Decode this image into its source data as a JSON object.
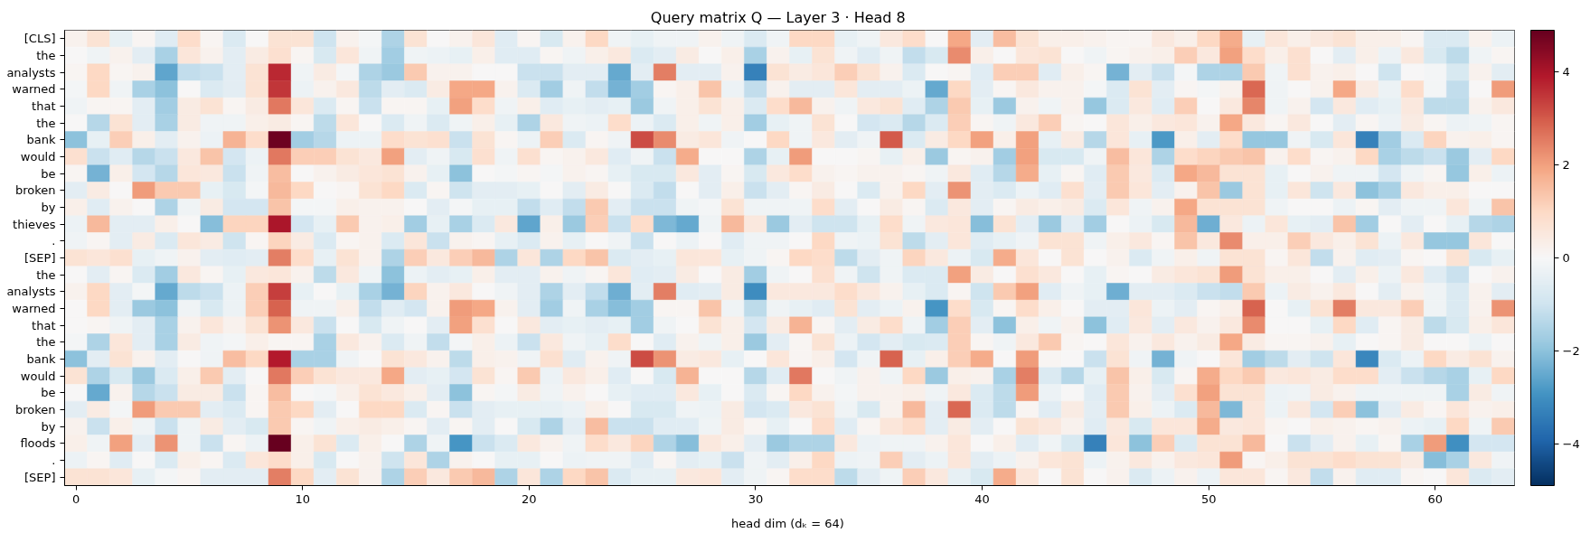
{
  "chart_data": {
    "type": "heatmap",
    "title": "Query matrix  Q   —   Layer 3 · Head 8",
    "xlabel": "head dim  (dₖ = 64)",
    "categories": [
      "0",
      null,
      null,
      null,
      null,
      null,
      null,
      null,
      null,
      null,
      "10",
      null,
      null,
      null,
      null,
      null,
      null,
      null,
      null,
      null,
      "20",
      null,
      null,
      null,
      null,
      null,
      null,
      null,
      null,
      null,
      "30",
      null,
      null,
      null,
      null,
      null,
      null,
      null,
      null,
      null,
      "40",
      null,
      null,
      null,
      null,
      null,
      null,
      null,
      null,
      null,
      "50",
      null,
      null,
      null,
      null,
      null,
      null,
      null,
      null,
      null,
      "60",
      null,
      null,
      null
    ],
    "y_categories": [
      "[CLS]",
      "the",
      "analysts",
      "warned",
      "that",
      "the",
      "bank",
      "would",
      "be",
      "broken",
      "by",
      "thieves",
      ".",
      "[SEP]",
      "the",
      "analysts",
      "warned",
      "that",
      "the",
      "bank",
      "would",
      "be",
      "broken",
      "by",
      "floods",
      ".",
      "[SEP]"
    ],
    "cells": [
      [
        0.2,
        0.7,
        -0.4,
        0.1,
        -0.6,
        0.9,
        0.1,
        -0.7,
        0,
        0.7,
        0.7,
        -1.0,
        0.2,
        -0.1,
        -1.5,
        0.7,
        0,
        0.2,
        0.6,
        -0.6,
        0.1,
        -0.8,
        0.2,
        1.0,
        -0.2,
        -0.4,
        -0.2,
        -0.2,
        0.2,
        -0.2,
        -0.7,
        -0.2,
        1.0,
        1.0,
        -0.4,
        -0.2,
        0.5,
        0.9,
        0,
        1.9,
        -0.5,
        1.5,
        0.7,
        0.3,
        0.3,
        0.2,
        0.1,
        0.1,
        0.5,
        0.3,
        1.0,
        1.8,
        -0.4,
        0.6,
        0.3,
        0.5,
        0.7,
        0.3,
        0.3,
        0.1,
        -0.7,
        -0.7,
        0.2,
        -0.3
      ],
      [
        0,
        -0.2,
        0.2,
        -0.5,
        -1.6,
        0.6,
        0.2,
        -0.5,
        0.4,
        0.8,
        0.1,
        -0.8,
        0.6,
        -0.2,
        -1.7,
        -0.2,
        -0.3,
        -0.4,
        0.3,
        -0.6,
        -0.6,
        0.1,
        -0.2,
        0.3,
        0.5,
        -0.7,
        -0.5,
        0.4,
        0,
        0.3,
        -1.6,
        0.2,
        -0.4,
        0.7,
        -0.2,
        -0.6,
        -0.2,
        -1.2,
        -0.8,
        2.3,
        0.3,
        0,
        0.6,
        0.7,
        0,
        -0.2,
        0.1,
        0.2,
        0.3,
        1.2,
        0.5,
        2.0,
        0.9,
        0.3,
        0.8,
        0,
        -0.5,
        0.3,
        -0.3,
        0.5,
        -0.8,
        -1.3,
        -0.2,
        0.1
      ],
      [
        0.1,
        1.0,
        0.1,
        0.2,
        -2.6,
        -1.2,
        -1.1,
        -0.5,
        0.7,
        3.7,
        -0.2,
        0.4,
        -0.1,
        -1.5,
        -1.8,
        1.3,
        0.2,
        0.2,
        0,
        0,
        -1.1,
        -1.1,
        -0.5,
        -0.5,
        -2.5,
        -0.5,
        2.5,
        -0.5,
        -0.5,
        0.2,
        -3.3,
        0.7,
        0.4,
        0.6,
        1.2,
        0.7,
        0.2,
        -0.7,
        0,
        0.1,
        -0.6,
        1.2,
        1.2,
        -0.6,
        0.3,
        0.1,
        -2.3,
        -0.5,
        -1.1,
        -0.1,
        -1.5,
        -1.5,
        1.3,
        -0.2,
        0.8,
        0.2,
        0.3,
        0,
        -1.0,
        0,
        -0.1,
        -0.8,
        0.2,
        -0.5
      ],
      [
        -0.1,
        1.0,
        -0.2,
        -1.6,
        -2.0,
        0,
        -0.7,
        -0.5,
        0.7,
        3.5,
        -0.3,
        0.2,
        0.5,
        -1.3,
        -0.5,
        -0.7,
        0.4,
        1.9,
        1.9,
        0.2,
        -0.7,
        -1.7,
        -0.2,
        -1.2,
        -2.3,
        -1.7,
        0.1,
        0.3,
        1.4,
        -0.3,
        -1.2,
        0.2,
        -0.5,
        -0.5,
        0.6,
        -0.5,
        -0.5,
        -0.3,
        -2.5,
        1.0,
        -0.5,
        0.1,
        0.5,
        0.2,
        0.2,
        -0.1,
        -0.7,
        0.7,
        -0.5,
        0.1,
        -0.1,
        0.2,
        2.8,
        -0.2,
        0,
        0.2,
        1.9,
        0.4,
        -0.3,
        0.9,
        -0.1,
        -1.2,
        0,
        2.1
      ],
      [
        -0.2,
        0.1,
        0.1,
        -0.5,
        -1.7,
        0.4,
        0.7,
        0.1,
        0.4,
        2.6,
        0.6,
        -0.7,
        0.1,
        -1.1,
        0.1,
        0.1,
        -0.4,
        2.0,
        0.9,
        -0.2,
        0.3,
        -0.6,
        -0.4,
        -0.5,
        -0.4,
        -1.8,
        -0.2,
        0.3,
        0.7,
        0.3,
        -0.7,
        0.9,
        1.6,
        0.2,
        -0.2,
        0.5,
        0.7,
        -0.6,
        -1.5,
        1.3,
        -0.4,
        -1.8,
        0.2,
        -0.2,
        0.2,
        -1.9,
        -0.7,
        0.5,
        -0.6,
        1.2,
        0,
        0.5,
        2.4,
        -0.2,
        0.2,
        -0.9,
        0.5,
        -0.6,
        -0.4,
        0.5,
        -1.3,
        -1.3,
        0.2,
        0.5
      ],
      [
        0,
        -1.4,
        0.7,
        -0.5,
        -1.6,
        0.4,
        -0.2,
        -0.2,
        0.3,
        0.4,
        0.1,
        -1.3,
        0.6,
        0,
        -0.7,
        -0.2,
        -0.7,
        -0.2,
        0.3,
        -0.4,
        -1.5,
        0.5,
        -0.2,
        -0.3,
        0.9,
        -0.3,
        -0.7,
        0.3,
        -0.2,
        0.3,
        -1.7,
        -0.4,
        -0.2,
        0.7,
        0,
        -0.9,
        -0.7,
        -1.4,
        -0.7,
        1.2,
        0.1,
        -0.2,
        0.5,
        1.2,
        0.1,
        0,
        0.6,
        0.3,
        0.5,
        0.6,
        0.2,
        1.9,
        0.5,
        0.1,
        0.5,
        0,
        -0.5,
        0.1,
        -0.3,
        0.4,
        0.1,
        -0.3,
        -0.2,
        0.1
      ],
      [
        -2.0,
        -0.4,
        1.2,
        0.3,
        -0.5,
        0.2,
        -0.3,
        1.7,
        0.9,
        4.8,
        -1.7,
        -1.4,
        -0.3,
        -0.3,
        0.9,
        0.7,
        0.8,
        -1.1,
        0.7,
        0.1,
        -0.3,
        1.2,
        -0.7,
        0.1,
        -0.2,
        3.2,
        2.3,
        0.4,
        0.6,
        -0.2,
        0,
        1.0,
        -0.2,
        0.5,
        -0.5,
        -0.2,
        3.0,
        -0.7,
        0.4,
        1.0,
        2.0,
        0.3,
        2.0,
        -0.4,
        0.4,
        -1.4,
        0.6,
        -0.4,
        -2.8,
        0.3,
        -0.5,
        0.9,
        -1.9,
        -1.9,
        -0.2,
        -0.8,
        0.6,
        -3.3,
        -1.7,
        -0.7,
        1.1,
        0.2,
        0.3,
        0.1
      ],
      [
        0.8,
        -1.1,
        -0.6,
        -1.4,
        -1.1,
        0.5,
        1.4,
        -0.9,
        -0.3,
        2.6,
        1.2,
        1.2,
        0.7,
        0.5,
        2.0,
        -0.5,
        -0.2,
        -0.8,
        0.8,
        -0.2,
        0.8,
        0.1,
        0.2,
        0.5,
        -0.6,
        -0.2,
        -1.1,
        1.8,
        0,
        0,
        -1.5,
        -0.4,
        2.1,
        0,
        0,
        0.1,
        -0.4,
        0.3,
        -1.8,
        0.1,
        0.2,
        -1.7,
        2.0,
        -0.8,
        -0.8,
        -0.2,
        1.5,
        0.6,
        -1.5,
        0.9,
        1.1,
        1.3,
        1.4,
        0.2,
        0.9,
        0.1,
        0.2,
        1.0,
        -1.6,
        -1.3,
        -1.1,
        -1.8,
        -0.5,
        1.0
      ],
      [
        0.1,
        -2.3,
        0.3,
        -0.9,
        -1.4,
        0.6,
        0.5,
        -1.1,
        -0.2,
        1.5,
        0,
        0.2,
        0.4,
        0.6,
        0.7,
        0.2,
        -0.4,
        -2.0,
        0,
        -0.1,
        0.1,
        -0.1,
        0.2,
        0.1,
        -0.4,
        -0.8,
        -0.8,
        0.5,
        -0.5,
        0.1,
        -0.8,
        0.5,
        0.9,
        0.2,
        0.1,
        0.2,
        0.2,
        0.1,
        -0.2,
        0.5,
        -0.6,
        -1.4,
        1.8,
        -0.4,
        0.1,
        -0.6,
        1.3,
        0.5,
        -0.7,
        1.9,
        1.6,
        0.7,
        0.7,
        -0.4,
        0,
        0.2,
        -0.2,
        -0.2,
        -0.9,
        -0.2,
        0.1,
        -1.9,
        0.3,
        -0.3
      ],
      [
        -0.5,
        0.4,
        0,
        2.1,
        1.3,
        1.3,
        -0.4,
        -0.8,
        -0.1,
        1.6,
        1.0,
        0,
        0.1,
        0.7,
        1.0,
        -0.7,
        0.1,
        -1.0,
        -0.5,
        -0.5,
        -0.4,
        0,
        -0.5,
        0.4,
        0,
        -0.7,
        -1.2,
        0,
        -0.5,
        0.3,
        -1.1,
        -0.5,
        0.1,
        0.4,
        0,
        -0.7,
        0.2,
        1.0,
        -0.5,
        2.2,
        -0.5,
        -0.7,
        -0.3,
        -0.6,
        0.8,
        -0.5,
        1.3,
        0.6,
        -0.5,
        0.2,
        1.4,
        -1.8,
        0.7,
        -0.4,
        0.6,
        -1.0,
        0.5,
        -2.0,
        -1.6,
        0.5,
        0.3,
        0.3,
        0,
        0
      ],
      [
        0.3,
        -0.6,
        0.2,
        0,
        -1.5,
        -0.2,
        0.4,
        -0.9,
        -0.9,
        1.4,
        -0.1,
        -0.1,
        0.3,
        0.2,
        0.2,
        0,
        -0.5,
        -0.1,
        -0.4,
        -0.4,
        -1.2,
        -0.6,
        -1.2,
        1.3,
        -0.5,
        -1.1,
        -1.1,
        -0.2,
        -0.1,
        0.7,
        -0.2,
        -0.2,
        -0.2,
        0.9,
        -0.5,
        0,
        0.4,
        0.1,
        -0.7,
        0.5,
        -0.5,
        0.1,
        0.4,
        0.3,
        0.4,
        -0.7,
        0.6,
        -0.2,
        0.2,
        1.9,
        0.7,
        0.7,
        0.7,
        -0.2,
        0,
        0,
        -0.3,
        0.1,
        -0.5,
        -0.2,
        -0.2,
        0.6,
        -0.2,
        1.4
      ],
      [
        -0.3,
        1.6,
        -0.5,
        -0.5,
        0.3,
        0,
        -2.1,
        1.1,
        1.1,
        4.0,
        -0.9,
        -0.4,
        1.3,
        0.2,
        0.3,
        -1.7,
        -0.4,
        -1.6,
        -0.7,
        0.5,
        -2.6,
        0.3,
        -1.8,
        1.2,
        -1.1,
        0.9,
        -2.2,
        -2.5,
        -0.2,
        1.6,
        0.5,
        -1.8,
        -0.5,
        -1.0,
        -1.0,
        -0.4,
        0.9,
        -0.2,
        0.5,
        0.6,
        -2.1,
        0.7,
        -0.5,
        -1.8,
        -0.5,
        -1.7,
        0,
        -0.3,
        -0.8,
        1.6,
        -2.4,
        0.5,
        -0.3,
        0.6,
        -0.4,
        -0.5,
        1.4,
        -1.7,
        0,
        -0.5,
        0,
        -0.4,
        -1.4,
        -1.5
      ],
      [
        -0.2,
        0.1,
        -0.5,
        0.4,
        -0.7,
        0.6,
        0.4,
        -1.0,
        0.1,
        1.1,
        0.4,
        -0.7,
        0.1,
        0.2,
        -0.7,
        0.6,
        -1.1,
        0.2,
        0.1,
        -0.4,
        -0.7,
        0.2,
        -0.4,
        0,
        -0.2,
        -1.1,
        0,
        -0.3,
        0,
        -0.6,
        -0.2,
        -0.2,
        0,
        1.0,
        -0.2,
        -0.3,
        0.7,
        -1.3,
        -0.5,
        0.6,
        -0.6,
        -0.4,
        -0.2,
        0.7,
        0.7,
        -0.2,
        0.3,
        0.5,
        0.1,
        1.4,
        0.5,
        2.3,
        0.3,
        0.3,
        1.2,
        0.5,
        0.3,
        0.7,
        -0.3,
        0.5,
        -1.9,
        -1.9,
        0.6,
        0
      ],
      [
        0.7,
        0.6,
        0.8,
        -0.4,
        -0.2,
        0.2,
        -0.5,
        -0.6,
        -0.5,
        2.5,
        0.9,
        -0.4,
        0.7,
        0.2,
        -1.5,
        1.2,
        0.5,
        1.2,
        1.6,
        -1.5,
        0.6,
        -1.5,
        1.0,
        1.4,
        -0.7,
        -0.5,
        -0.4,
        0.6,
        0.6,
        -0.4,
        -0.2,
        0.1,
        1.0,
        0.9,
        -1.3,
        -0.5,
        -0.2,
        1.1,
        0.5,
        -0.3,
        -0.8,
        1.8,
        0.6,
        0,
        0.7,
        0,
        0.2,
        -0.7,
        -0.2,
        0.3,
        -0.2,
        0.7,
        0.7,
        0.1,
        0.6,
        -1.2,
        0.2,
        -0.6,
        -0.5,
        0.1,
        0,
        0.7,
        -0.8,
        -0.4
      ],
      [
        0,
        -0.5,
        0.1,
        -0.7,
        -1.7,
        0.5,
        0.1,
        -0.4,
        0.5,
        0.6,
        0.2,
        -1.3,
        0.5,
        -0.2,
        -2.0,
        -0.3,
        -0.5,
        -0.4,
        0.3,
        -0.5,
        -0.5,
        0.2,
        -0.2,
        0.1,
        0.6,
        -0.6,
        -0.5,
        0.4,
        0,
        0.4,
        -1.7,
        -0.2,
        0,
        0.8,
        -0.2,
        -1.0,
        -0.2,
        -0.7,
        -0.7,
        2.0,
        0.4,
        0,
        0.8,
        0.5,
        0,
        -0.4,
        0.1,
        0,
        0.4,
        0.6,
        0.7,
        2.1,
        0.7,
        0.3,
        0.3,
        0,
        -0.5,
        0.3,
        -0.3,
        0.5,
        -0.6,
        -1.1,
        0,
        0.2
      ],
      [
        0.2,
        1.0,
        -0.5,
        -0.1,
        -2.5,
        -1.3,
        -1.1,
        -0.3,
        1.2,
        3.4,
        -0.4,
        0,
        -0.4,
        -1.6,
        -2.3,
        1.1,
        0.2,
        0.5,
        0,
        -0.2,
        -0.5,
        -1.5,
        -0.5,
        -1.2,
        -2.4,
        -0.5,
        2.5,
        -0.6,
        -0.5,
        0.4,
        -3.1,
        0.5,
        0.5,
        0.5,
        0.9,
        0.5,
        0.2,
        -0.4,
        -0.7,
        0.1,
        -1.0,
        1.3,
        2.0,
        -0.6,
        -0.2,
        -0.4,
        -2.4,
        -0.5,
        -0.5,
        -0.7,
        -1.1,
        -1.2,
        1.3,
        -0.3,
        0.4,
        0.2,
        0.5,
        0,
        -0.5,
        0.2,
        -0.2,
        -0.7,
        0.2,
        -0.5
      ],
      [
        0,
        1.0,
        -0.5,
        -1.8,
        -2.0,
        -0.2,
        -0.8,
        -0.3,
        1.2,
        2.9,
        -0.2,
        -0.2,
        0.3,
        -1.2,
        -0.6,
        -0.9,
        0.2,
        2.1,
        1.9,
        0.2,
        -0.5,
        -1.7,
        -0.2,
        -1.6,
        -2.1,
        -1.7,
        0.1,
        0.1,
        1.4,
        -0.2,
        -1.3,
        -0.2,
        -0.4,
        -0.6,
        0.7,
        -0.5,
        -0.3,
        0.2,
        -2.9,
        0.9,
        -0.8,
        0.1,
        0.9,
        0.3,
        0,
        -0.5,
        -0.5,
        0.6,
        -0.3,
        -0.5,
        0.1,
        0.3,
        2.9,
        0,
        -0.4,
        0.7,
        2.5,
        0.5,
        0.5,
        1.2,
        -0.2,
        -0.7,
        0.2,
        2.2
      ],
      [
        0,
        0.1,
        -0.2,
        -0.5,
        -1.6,
        0.2,
        0.6,
        0.2,
        0.7,
        2.2,
        0.5,
        -1.1,
        0,
        -0.8,
        -0.2,
        0,
        -0.5,
        2.0,
        0.8,
        0,
        0.5,
        -0.5,
        -0.4,
        -0.5,
        -0.4,
        -1.7,
        -0.2,
        0,
        0.7,
        0.3,
        -0.9,
        0.4,
        1.7,
        0.1,
        -0.5,
        0.4,
        0.9,
        -0.2,
        -1.7,
        1.2,
        -0.5,
        -2.0,
        0.3,
        -0.2,
        0.2,
        -2.0,
        -0.6,
        0.5,
        -0.5,
        0.5,
        0.2,
        0.5,
        2.3,
        0,
        0,
        -0.4,
        1.0,
        -0.6,
        0.1,
        0.4,
        -1.3,
        -0.8,
        0.3,
        0.6
      ],
      [
        -0.1,
        -1.5,
        0.6,
        -0.5,
        -1.6,
        0.4,
        -0.2,
        -0.1,
        0.3,
        0.1,
        0.1,
        -1.6,
        0.5,
        0.2,
        -0.7,
        -0.2,
        -1.2,
        -0.1,
        0.3,
        -0.3,
        -1.1,
        0.5,
        -0.2,
        -0.4,
        0.9,
        0,
        -0.6,
        0.2,
        -0.2,
        0.3,
        -1.8,
        -0.5,
        0.1,
        0.7,
        -0.3,
        -0.9,
        -0.5,
        -0.8,
        -0.7,
        1.2,
        0.1,
        -0.2,
        0.5,
        1.3,
        0.1,
        0,
        0.6,
        0.2,
        0.5,
        0.2,
        0.4,
        1.9,
        0.4,
        0.1,
        0.1,
        0.2,
        -0.4,
        0,
        0.1,
        0.4,
        0,
        0,
        -0.3,
        0
      ],
      [
        -2.0,
        -0.5,
        0.7,
        0.2,
        -0.5,
        0,
        -0.2,
        1.5,
        1.0,
        3.9,
        -1.6,
        -1.6,
        -0.2,
        0,
        0.7,
        0.5,
        0.2,
        -1.3,
        0.3,
        0.2,
        -0.2,
        0.8,
        -0.6,
        0.2,
        -0.2,
        3.2,
        2.2,
        0.4,
        0.5,
        -0.4,
        0,
        0.6,
        0.1,
        0.3,
        -0.9,
        -0.2,
        2.9,
        -0.4,
        0.3,
        1.2,
        1.8,
        0,
        2.1,
        0.1,
        0,
        -1.1,
        0.7,
        -0.2,
        -2.3,
        -0.2,
        0,
        0.6,
        -1.7,
        -1.3,
        -0.5,
        -1.0,
        0.6,
        -3.2,
        -0.7,
        -0.3,
        1.0,
        0.4,
        0.7,
        0.2
      ],
      [
        0.7,
        -1.5,
        -0.8,
        -1.8,
        -0.7,
        0.3,
        1.3,
        -0.5,
        0,
        2.6,
        1.2,
        0.7,
        0.5,
        0.5,
        1.9,
        -0.5,
        -0.4,
        -0.9,
        0.7,
        0.1,
        1.3,
        -0.3,
        0.5,
        0.3,
        -0.6,
        0,
        -0.8,
        1.7,
        0,
        0,
        -1.4,
        -0.6,
        2.6,
        0,
        -0.2,
        0.2,
        -0.2,
        1.0,
        -1.8,
        0.3,
        0.2,
        -1.6,
        2.5,
        -0.7,
        -1.4,
        -0.4,
        1.4,
        0.3,
        -0.8,
        0.1,
        1.8,
        1.0,
        1.3,
        0.5,
        0.6,
        0.4,
        0.9,
        0.9,
        -0.5,
        -1.1,
        -1.4,
        -1.6,
        -0.4,
        1.0
      ],
      [
        0,
        -2.5,
        0.2,
        -1.4,
        -1.1,
        0.4,
        0.4,
        -1.1,
        0.1,
        1.5,
        0,
        -0.1,
        0.3,
        0.7,
        0.5,
        0.3,
        -0.5,
        -2.0,
        0.1,
        -0.1,
        0.4,
        -0.2,
        0.2,
        0,
        -0.4,
        -0.6,
        -0.6,
        0.5,
        -0.4,
        0,
        -0.7,
        0.1,
        1.0,
        0.2,
        -0.1,
        0.2,
        0.2,
        0.3,
        -0.2,
        0.5,
        -0.7,
        -1.3,
        2.1,
        -0.3,
        0,
        -0.6,
        1.3,
        0.2,
        -0.5,
        0.8,
        2.0,
        0.7,
        0.7,
        -0.3,
        -0.2,
        0.4,
        0.2,
        -0.2,
        -0.2,
        -0.2,
        -0.2,
        -1.6,
        0.4,
        -0.2
      ],
      [
        -0.5,
        0.4,
        -0.1,
        2.1,
        1.3,
        1.3,
        -0.5,
        -0.7,
        0.1,
        1.3,
        1.0,
        -0.5,
        0,
        1.0,
        1.0,
        -0.7,
        0.1,
        -1.1,
        -0.5,
        -0.4,
        -0.4,
        -0.4,
        -0.3,
        0.3,
        0,
        -0.8,
        -0.8,
        -0.2,
        -0.3,
        0.4,
        -0.9,
        -0.7,
        0.5,
        0.7,
        -0.2,
        -0.8,
        0.2,
        1.6,
        -0.5,
        2.8,
        -0.7,
        -1.3,
        0.1,
        -0.6,
        0.4,
        -0.5,
        1.3,
        0.3,
        -0.3,
        -0.7,
        1.6,
        -2.2,
        0.6,
        -0.3,
        0.5,
        -0.9,
        1.2,
        -2.0,
        -0.5,
        0.4,
        0.1,
        0.6,
        0.2,
        0.3
      ],
      [
        0.2,
        -1.1,
        0.3,
        -0.2,
        -1.1,
        -0.2,
        0.4,
        -0.5,
        -0.8,
        1.3,
        0.1,
        -0.2,
        0.3,
        0.4,
        0.3,
        0.1,
        -0.5,
        0.1,
        -0.5,
        0,
        -0.8,
        -1.5,
        -0.5,
        1.5,
        -1.1,
        -1.1,
        -0.6,
        -0.6,
        -0.2,
        0.4,
        0.1,
        -0.4,
        0,
        0.9,
        -0.6,
        0.1,
        0.6,
        0.9,
        -0.5,
        0.4,
        -0.5,
        0,
        0.7,
        0.5,
        0.2,
        -0.6,
        0.5,
        -0.8,
        0.6,
        0.6,
        1.8,
        0.5,
        0.6,
        0.1,
        0,
        0.3,
        0.2,
        0.1,
        0.2,
        -0.3,
        -0.4,
        1.0,
        -0.2,
        1.3
      ],
      [
        0.3,
        -0.2,
        2.0,
        -0.5,
        2.2,
        -0.2,
        -1.1,
        0.1,
        -0.3,
        4.9,
        0.3,
        0.7,
        -0.7,
        0.3,
        0,
        -1.5,
        -0.2,
        -2.9,
        -1.1,
        -0.7,
        0.5,
        0.2,
        -0.2,
        0.9,
        0.5,
        1.1,
        -1.5,
        -2.1,
        0.5,
        0.3,
        -0.5,
        -1.8,
        -1.5,
        -1.5,
        0.5,
        -0.3,
        -0.2,
        -0.2,
        0.2,
        0.6,
        0,
        0.3,
        -0.6,
        -0.2,
        -0.8,
        -3.3,
        0.6,
        -2.0,
        1.2,
        -0.7,
        0.7,
        0.7,
        1.6,
        0,
        -1.1,
        -0.5,
        0.2,
        -0.4,
        0.1,
        -1.6,
        2.1,
        -3.0,
        -0.9,
        -0.9
      ],
      [
        -0.3,
        0.1,
        -0.6,
        0,
        -0.7,
        0.3,
        0.1,
        -0.7,
        0.6,
        0.9,
        0.3,
        -0.8,
        0,
        0.2,
        -1.0,
        0.6,
        -1.5,
        0.2,
        0,
        -0.4,
        -0.4,
        0,
        -0.3,
        -0.2,
        -0.2,
        -0.6,
        0.1,
        -0.5,
        -0.4,
        -1.1,
        -0.2,
        -0.5,
        0.3,
        1.0,
        -0.3,
        -0.2,
        1.2,
        -0.5,
        -0.3,
        0.6,
        -0.5,
        -0.3,
        0.2,
        0.6,
        0.7,
        -0.3,
        0.2,
        0.5,
        0.2,
        0.5,
        0.6,
        2.1,
        0.1,
        0.3,
        0.7,
        0.7,
        0.9,
        0.7,
        0.7,
        0.4,
        -2.1,
        -1.6,
        0.5,
        -0.2
      ],
      [
        0.7,
        0.7,
        0.6,
        -0.4,
        -0.1,
        0.1,
        -0.5,
        -0.5,
        -0.5,
        2.5,
        1.0,
        -0.5,
        0.7,
        0.2,
        -1.5,
        1.2,
        0.5,
        1.3,
        1.6,
        -1.5,
        0.6,
        -1.5,
        1.0,
        1.4,
        -0.7,
        -0.4,
        -0.4,
        0.5,
        0.6,
        -0.5,
        -0.2,
        0.1,
        0.9,
        0.9,
        -1.3,
        -0.5,
        -0.2,
        1.2,
        0.5,
        -0.4,
        -0.8,
        1.8,
        0.6,
        0,
        0.7,
        0,
        0.2,
        -0.7,
        -0.3,
        0.2,
        -0.3,
        0.6,
        0.6,
        0.1,
        0.5,
        -1.2,
        0.2,
        -0.6,
        -0.6,
        0.1,
        0,
        0.6,
        -0.7,
        -0.5
      ]
    ],
    "clim": [
      -4.9,
      4.9
    ],
    "cticks": [
      {
        "value": -4,
        "label": "−4"
      },
      {
        "value": -2,
        "label": "−2"
      },
      0,
      2,
      4
    ]
  }
}
